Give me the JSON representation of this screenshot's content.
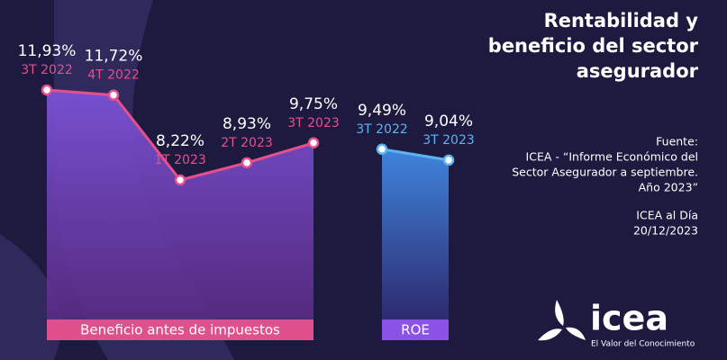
{
  "title_lines": [
    "Rentabilidad y",
    "beneficio del sector",
    "asegurador"
  ],
  "source_lines": [
    "Fuente:",
    "ICEA - “Informe Económico del",
    "Sector Asegurador a septiembre.",
    "Año 2023”"
  ],
  "date_lines": [
    "ICEA al Día",
    "20/12/2023"
  ],
  "logo": {
    "name": "icea",
    "tagline": "El Valor del Conocimiento"
  },
  "chart_data": [
    {
      "type": "line",
      "title": "Beneficio antes de impuestos",
      "categories": [
        "3T 2022",
        "4T 2022",
        "1T 2023",
        "2T 2023",
        "3T 2023"
      ],
      "values": [
        11.93,
        11.72,
        8.22,
        8.93,
        9.75
      ],
      "value_labels": [
        "11,93%",
        "11,72%",
        "8,22%",
        "8,93%",
        "9,75%"
      ],
      "color": "#e5508c",
      "area_color": "#7b52d6",
      "label_color": "#e0508c"
    },
    {
      "type": "line",
      "title": "ROE",
      "categories": [
        "3T 2022",
        "3T 2023"
      ],
      "values": [
        9.49,
        9.04
      ],
      "value_labels": [
        "9,49%",
        "9,04%"
      ],
      "color": "#5cb3f2",
      "area_color": "#3f84dc",
      "label_color": "#8a52e6"
    }
  ]
}
